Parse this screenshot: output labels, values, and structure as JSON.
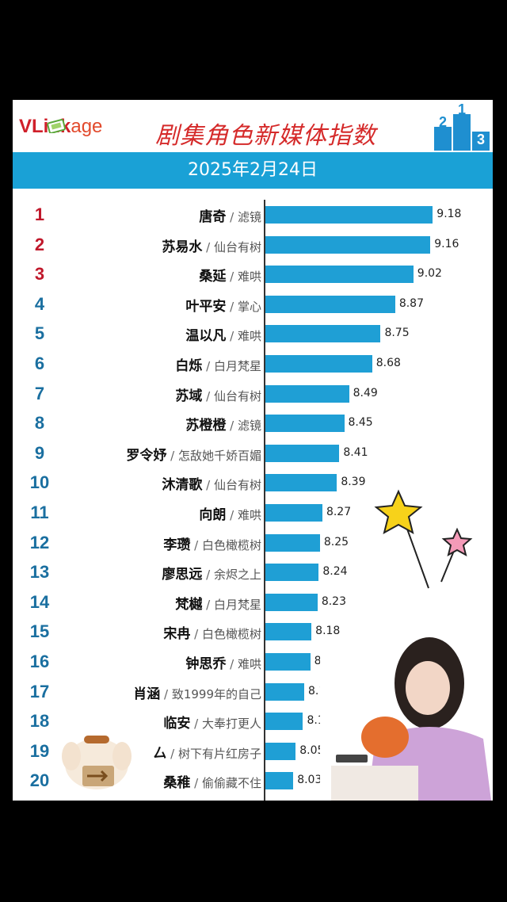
{
  "header": {
    "logo": {
      "part1": "VLink",
      "part2": "age"
    },
    "title": "剧集角色新媒体指数",
    "date": "2025年2月24日"
  },
  "chart_data": {
    "type": "bar",
    "orientation": "horizontal",
    "title": "剧集角色新媒体指数",
    "subtitle": "2025年2月24日",
    "xlim": [
      7.8,
      9.25
    ],
    "rows": [
      {
        "rank": "1",
        "name": "唐奇",
        "drama": "滤镜",
        "value": 9.18
      },
      {
        "rank": "2",
        "name": "苏易水",
        "drama": "仙台有树",
        "value": 9.16
      },
      {
        "rank": "3",
        "name": "桑延",
        "drama": "难哄",
        "value": 9.02
      },
      {
        "rank": "4",
        "name": "叶平安",
        "drama": "掌心",
        "value": 8.87
      },
      {
        "rank": "5",
        "name": "温以凡",
        "drama": "难哄",
        "value": 8.75
      },
      {
        "rank": "6",
        "name": "白烁",
        "drama": "白月梵星",
        "value": 8.68
      },
      {
        "rank": "7",
        "name": "苏域",
        "drama": "仙台有树",
        "value": 8.49
      },
      {
        "rank": "8",
        "name": "苏橙橙",
        "drama": "滤镜",
        "value": 8.45
      },
      {
        "rank": "9",
        "name": "罗令妤",
        "drama": "怎敌她千娇百媚",
        "value": 8.41
      },
      {
        "rank": "10",
        "name": "沐清歌",
        "drama": "仙台有树",
        "value": 8.39
      },
      {
        "rank": "11",
        "name": "向朗",
        "drama": "难哄",
        "value": 8.27
      },
      {
        "rank": "12",
        "name": "李瓒",
        "drama": "白色橄榄树",
        "value": 8.25
      },
      {
        "rank": "13",
        "name": "廖思远",
        "drama": "余烬之上",
        "value": 8.24
      },
      {
        "rank": "14",
        "name": "梵樾",
        "drama": "白月梵星",
        "value": 8.23
      },
      {
        "rank": "15",
        "name": "宋冉",
        "drama": "白色橄榄树",
        "value": 8.18
      },
      {
        "rank": "16",
        "name": "钟思乔",
        "drama": "难哄",
        "value": 8.17
      },
      {
        "rank": "17",
        "name": "肖涵",
        "drama": "致1999年的自己",
        "value": 8.12
      },
      {
        "rank": "18",
        "name": "临安",
        "drama": "大奉打更人",
        "value": 8.11
      },
      {
        "rank": "19",
        "name": "厶",
        "drama": "树下有片红房子",
        "value": 8.05
      },
      {
        "rank": "20",
        "name": "桑稚",
        "drama": "偷偷藏不住",
        "value": 8.03
      }
    ],
    "rank_colors": [
      "#c0182b",
      "#1a6fa0"
    ],
    "bar_color": "#1f9fd5"
  }
}
